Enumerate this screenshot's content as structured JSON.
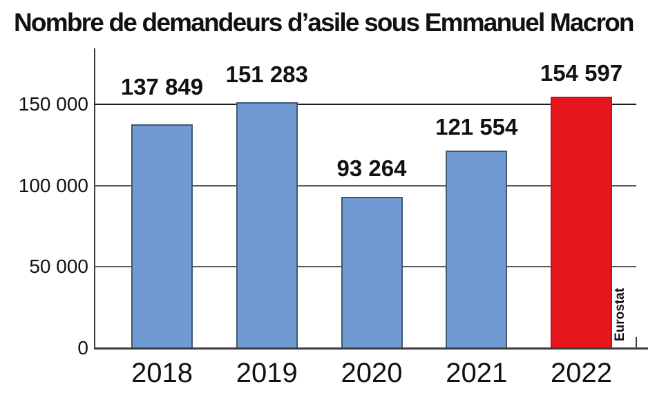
{
  "title": "Nombre de demandeurs d’asile sous Emmanuel Macron",
  "source": "Eurostat",
  "chart_data": {
    "type": "bar",
    "title": "Nombre de demandeurs d’asile sous Emmanuel Macron",
    "categories": [
      "2018",
      "2019",
      "2020",
      "2021",
      "2022"
    ],
    "values": [
      137849,
      151283,
      93264,
      121554,
      154597
    ],
    "value_labels": [
      "137 849",
      "151 283",
      "93 264",
      "121 554",
      "154 597"
    ],
    "xlabel": "",
    "ylabel": "",
    "ylim": [
      0,
      184000
    ],
    "yticks": [
      {
        "value": 0,
        "label": "0"
      },
      {
        "value": 50000,
        "label": "50 000"
      },
      {
        "value": 100000,
        "label": "100 000"
      },
      {
        "value": 150000,
        "label": "150 000"
      }
    ],
    "grid": "horizontal",
    "legend": "none",
    "annotation": "Eurostat",
    "bar_colors": [
      "#6f9bd2",
      "#6f9bd2",
      "#6f9bd2",
      "#6f9bd2",
      "#e6161d"
    ],
    "bar_border_colors": [
      "#3f5872",
      "#3f5872",
      "#3f5872",
      "#3f5872",
      "#c11016"
    ]
  },
  "colors": {
    "bar_blue": "#6f9bd2",
    "bar_red": "#e6161d",
    "bar_blue_border": "#3f5872",
    "bar_red_border": "#c11016",
    "grid": "#5a5a5a",
    "grid_major": "#1e1e1e",
    "axis": "#3c3c3c",
    "text": "#111111"
  }
}
